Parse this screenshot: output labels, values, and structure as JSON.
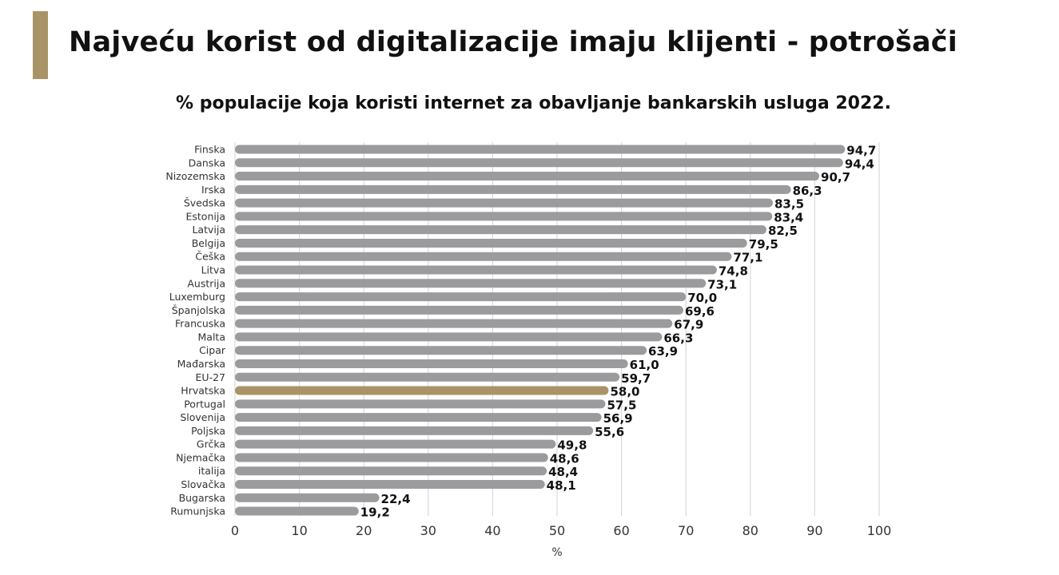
{
  "header": {
    "title": "Najveću korist od digitalizacije imaju klijenti - potrošači"
  },
  "colors": {
    "accent": "#a99467",
    "bar": "#9b9b9e",
    "highlight": "#a99467",
    "grid": "#d9d9d9"
  },
  "chart_data": {
    "type": "bar",
    "orientation": "horizontal",
    "title": "% populacije koja koristi internet za obavljanje bankarskih usluga 2022.",
    "xlabel": "%",
    "ylabel": "",
    "xlim": [
      0,
      100
    ],
    "ticks": [
      "0",
      "10",
      "20",
      "30",
      "40",
      "50",
      "60",
      "70",
      "80",
      "90",
      "100"
    ],
    "grid": true,
    "highlight_category": "Hrvatska",
    "categories": [
      "Finska",
      "Danska",
      "Nizozemska",
      "Irska",
      "Švedska",
      "Estonija",
      "Latvija",
      "Belgija",
      "Češka",
      "Litva",
      "Austrija",
      "Luxemburg",
      "Španjolska",
      "Francuska",
      "Malta",
      "Cipar",
      "Mađarska",
      "EU-27",
      "Hrvatska",
      "Portugal",
      "Slovenija",
      "Poljska",
      "Grčka",
      "Njemačka",
      "italija",
      "Slovačka",
      "Bugarska",
      "Rumunjska"
    ],
    "values": [
      94.7,
      94.4,
      90.7,
      86.3,
      83.5,
      83.4,
      82.5,
      79.5,
      77.1,
      74.8,
      73.1,
      70.0,
      69.6,
      67.9,
      66.3,
      63.9,
      61.0,
      59.7,
      58.0,
      57.5,
      56.9,
      55.6,
      49.8,
      48.6,
      48.4,
      48.1,
      22.4,
      19.2
    ],
    "value_labels": [
      "94,7",
      "94,4",
      "90,7",
      "86,3",
      "83,5",
      "83,4",
      "82,5",
      "79,5",
      "77,1",
      "74,8",
      "73,1",
      "70,0",
      "69,6",
      "67,9",
      "66,3",
      "63,9",
      "61,0",
      "59,7",
      "58,0",
      "57,5",
      "56,9",
      "55,6",
      "49,8",
      "48,6",
      "48,4",
      "48,1",
      "22,4",
      "19,2"
    ]
  }
}
